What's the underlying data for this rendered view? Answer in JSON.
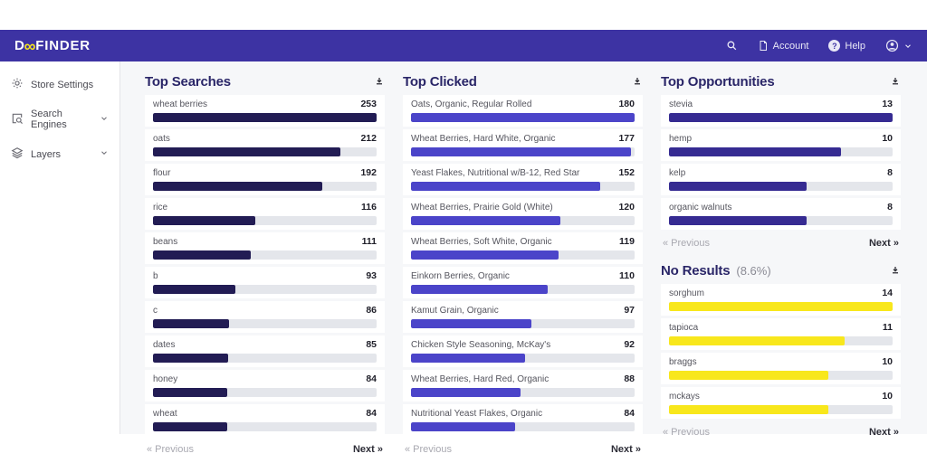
{
  "navbar": {
    "logo": {
      "text_start": "D",
      "text_oo": "∞",
      "text_end": "FINDER"
    },
    "account_label": "Account",
    "help_label": "Help",
    "help_glyph": "?"
  },
  "sidebar": {
    "items": [
      {
        "label": "Store Settings",
        "icon": "gear-icon",
        "expandable": false
      },
      {
        "label": "Search Engines",
        "icon": "search-engine-icon",
        "expandable": true
      },
      {
        "label": "Layers",
        "icon": "layers-icon",
        "expandable": true
      }
    ]
  },
  "pagination": {
    "previous": "« Previous",
    "next": "Next »"
  },
  "colors": {
    "navbar_bg": "#3d33a3",
    "logo_accent": "#f8e71c",
    "top_searches_bar": "#221c54",
    "top_clicked_bar": "#4b44c9",
    "top_opportunities_bar": "#362b92",
    "no_results_bar": "#f8e71c",
    "bar_track": "#e4e6eb",
    "title_text": "#2a2668"
  },
  "panels": [
    {
      "title": "Top Searches",
      "subtitle": "",
      "column": 1,
      "bar_color": "#221c54",
      "rows": [
        {
          "label": "wheat berries",
          "value": 253
        },
        {
          "label": "oats",
          "value": 212
        },
        {
          "label": "flour",
          "value": 192
        },
        {
          "label": "rice",
          "value": 116
        },
        {
          "label": "beans",
          "value": 111
        },
        {
          "label": "b",
          "value": 93
        },
        {
          "label": "c",
          "value": 86
        },
        {
          "label": "dates",
          "value": 85
        },
        {
          "label": "honey",
          "value": 84
        },
        {
          "label": "wheat",
          "value": 84
        }
      ]
    },
    {
      "title": "Top Clicked",
      "subtitle": "",
      "column": 2,
      "bar_color": "#4b44c9",
      "rows": [
        {
          "label": "Oats, Organic, Regular Rolled",
          "value": 180
        },
        {
          "label": "Wheat Berries, Hard White, Organic",
          "value": 177
        },
        {
          "label": "Yeast Flakes, Nutritional w/B-12, Red Star",
          "value": 152
        },
        {
          "label": "Wheat Berries, Prairie Gold (White)",
          "value": 120
        },
        {
          "label": "Wheat Berries, Soft White, Organic",
          "value": 119
        },
        {
          "label": "Einkorn Berries, Organic",
          "value": 110
        },
        {
          "label": "Kamut Grain, Organic",
          "value": 97
        },
        {
          "label": "Chicken Style Seasoning, McKay's",
          "value": 92
        },
        {
          "label": "Wheat Berries, Hard Red, Organic",
          "value": 88
        },
        {
          "label": "Nutritional Yeast Flakes, Organic",
          "value": 84
        }
      ]
    },
    {
      "title": "Top Opportunities",
      "subtitle": "",
      "column": 3,
      "bar_color": "#362b92",
      "rows": [
        {
          "label": "stevia",
          "value": 13
        },
        {
          "label": "hemp",
          "value": 10
        },
        {
          "label": "kelp",
          "value": 8
        },
        {
          "label": "organic walnuts",
          "value": 8
        }
      ]
    },
    {
      "title": "No Results",
      "subtitle": "(8.6%)",
      "column": 3,
      "bar_color": "#f8e71c",
      "rows": [
        {
          "label": "sorghum",
          "value": 14
        },
        {
          "label": "tapioca",
          "value": 11
        },
        {
          "label": "braggs",
          "value": 10
        },
        {
          "label": "mckays",
          "value": 10
        }
      ]
    }
  ]
}
